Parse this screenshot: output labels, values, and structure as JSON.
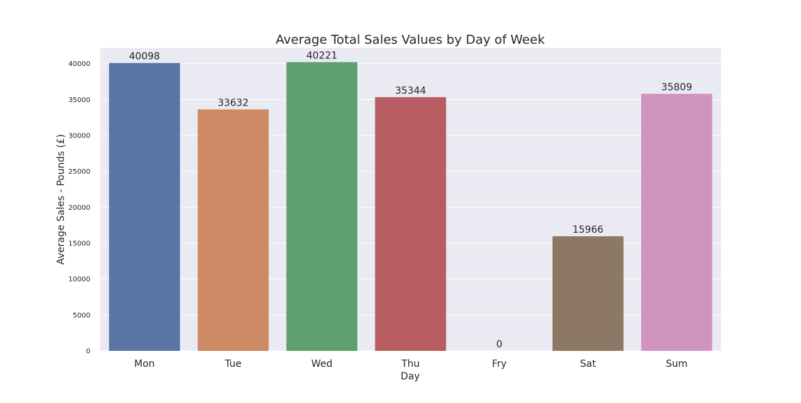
{
  "chart_data": {
    "type": "bar",
    "title": "Average Total Sales Values by Day of Week",
    "xlabel": "Day",
    "ylabel": "Average Sales - Pounds (£)",
    "categories": [
      "Mon",
      "Tue",
      "Wed",
      "Thu",
      "Fry",
      "Sat",
      "Sum"
    ],
    "values": [
      40098,
      33632,
      40221,
      35344,
      0,
      15966,
      35809
    ],
    "data_labels": [
      "40098",
      "33632",
      "40221",
      "35344",
      "0",
      "15966",
      "35809"
    ],
    "colors": [
      "#5975a4",
      "#cc8963",
      "#5f9e6e",
      "#b55d60",
      "#857aab",
      "#8d7866",
      "#d095bf"
    ],
    "ylim": [
      0,
      42200
    ],
    "yticks": [
      0,
      5000,
      10000,
      15000,
      20000,
      25000,
      30000,
      35000,
      40000
    ],
    "ytick_labels": [
      "0",
      "5000",
      "10000",
      "15000",
      "20000",
      "25000",
      "30000",
      "35000",
      "40000"
    ],
    "grid": true,
    "background": "#eaeaf2",
    "grid_color": "#ffffff"
  }
}
